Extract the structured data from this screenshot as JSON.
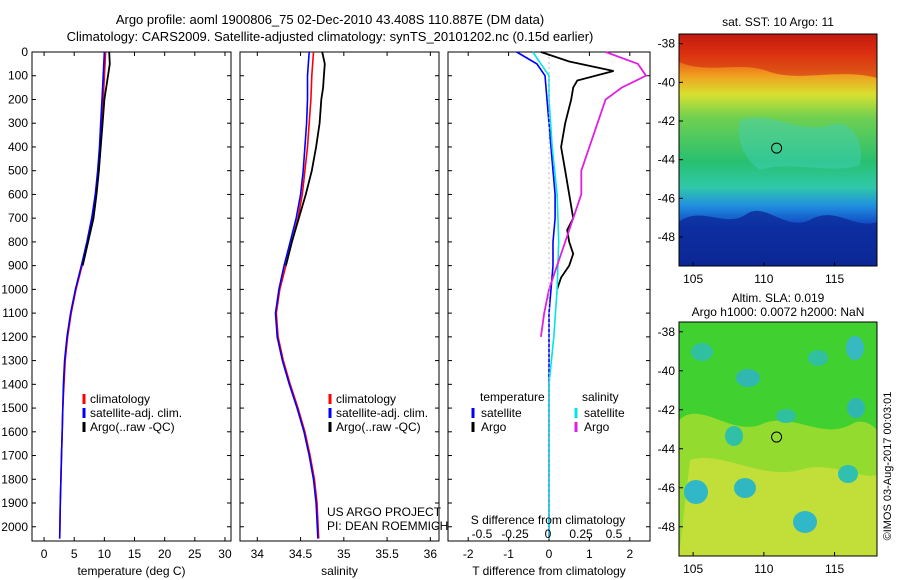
{
  "title": {
    "line1": "Argo profile: aoml 1900806_75 02-Dec-2010 43.408S 110.887E (DM data)",
    "line2": "Climatology: CARS2009. Satellite-adjusted climatology: synTS_20101202.nc (0.15d earlier)"
  },
  "depth_ticks": [
    "0",
    "100",
    "200",
    "300",
    "400",
    "500",
    "600",
    "700",
    "800",
    "900",
    "1000",
    "1100",
    "1200",
    "1300",
    "1400",
    "1500",
    "1600",
    "1700",
    "1800",
    "1900",
    "2000"
  ],
  "colors": {
    "climatology": "#ff0000",
    "satellite": "#0000ff",
    "argo": "#000000",
    "sal_satellite": "#00e5e5",
    "sal_argo": "#e020e0"
  },
  "chart_data": [
    {
      "type": "line",
      "id": "temperature",
      "xlabel": "temperature (deg C)",
      "xlim": [
        -2,
        31
      ],
      "xticks": [
        "0",
        "5",
        "10",
        "15",
        "20",
        "25",
        "30"
      ],
      "ylim": [
        2060,
        0
      ],
      "legend": [
        "climatology",
        "satellite-adj. clim.",
        "Argo(..raw -QC)"
      ],
      "series": [
        {
          "name": "climatology",
          "depth": [
            0,
            100,
            200,
            300,
            400,
            500,
            600,
            700,
            800,
            900,
            1000,
            1100,
            1200,
            1300,
            1400,
            1500,
            1600,
            1700,
            1800,
            1900,
            2050
          ],
          "values": [
            10.2,
            10.0,
            9.8,
            9.5,
            9.3,
            9.0,
            8.6,
            8.0,
            7.2,
            6.3,
            5.3,
            4.5,
            3.9,
            3.5,
            3.3,
            3.1,
            3.0,
            2.9,
            2.8,
            2.7,
            2.6
          ]
        },
        {
          "name": "satellite-adj. clim.",
          "depth": [
            0,
            100,
            200,
            300,
            400,
            500,
            600,
            700,
            800,
            900,
            1000,
            1100,
            1200,
            1300,
            1400,
            1500,
            1600,
            1700,
            1800,
            1900,
            2050
          ],
          "values": [
            10.0,
            9.8,
            9.6,
            9.4,
            9.2,
            8.9,
            8.5,
            7.9,
            7.1,
            6.2,
            5.2,
            4.4,
            3.8,
            3.4,
            3.2,
            3.1,
            3.0,
            2.9,
            2.8,
            2.7,
            2.6
          ]
        },
        {
          "name": "Argo(..raw -QC)",
          "depth": [
            0,
            50,
            100,
            150,
            200,
            300,
            400,
            500,
            600,
            700,
            800,
            900
          ],
          "values": [
            10.8,
            10.9,
            10.6,
            10.3,
            10.0,
            9.7,
            9.4,
            9.1,
            8.7,
            8.2,
            7.3,
            6.4
          ]
        }
      ]
    },
    {
      "type": "line",
      "id": "salinity",
      "xlabel": "salinity",
      "xlim": [
        33.8,
        36.1
      ],
      "xticks": [
        "34",
        "34.5",
        "35",
        "35.5",
        "36"
      ],
      "ylim": [
        2060,
        0
      ],
      "legend": [
        "climatology",
        "satellite-adj. clim.",
        "Argo(..raw -QC)"
      ],
      "annotation": [
        "US ARGO PROJECT",
        "PI: DEAN ROEMMICH"
      ],
      "series": [
        {
          "name": "climatology",
          "depth": [
            0,
            100,
            200,
            300,
            400,
            500,
            600,
            700,
            800,
            900,
            1000,
            1100,
            1200,
            1300,
            1400,
            1500,
            1600,
            1700,
            1800,
            1900,
            2050
          ],
          "values": [
            34.65,
            34.63,
            34.62,
            34.6,
            34.58,
            34.55,
            34.52,
            34.47,
            34.4,
            34.33,
            34.26,
            34.22,
            34.24,
            34.3,
            34.38,
            34.47,
            34.55,
            34.61,
            34.66,
            34.69,
            34.71
          ]
        },
        {
          "name": "satellite-adj. clim.",
          "depth": [
            0,
            100,
            200,
            300,
            400,
            500,
            600,
            700,
            800,
            900,
            1000,
            1100,
            1200,
            1300,
            1400,
            1500,
            1600,
            1700,
            1800,
            1900,
            2050
          ],
          "values": [
            34.6,
            34.58,
            34.58,
            34.57,
            34.55,
            34.53,
            34.5,
            34.45,
            34.38,
            34.31,
            34.25,
            34.21,
            34.23,
            34.29,
            34.37,
            34.46,
            34.54,
            34.6,
            34.65,
            34.68,
            34.7
          ]
        },
        {
          "name": "Argo(..raw -QC)",
          "depth": [
            0,
            50,
            100,
            150,
            200,
            300,
            400,
            500,
            600,
            700,
            800,
            900
          ],
          "values": [
            34.75,
            34.78,
            34.77,
            34.76,
            34.74,
            34.72,
            34.68,
            34.63,
            34.56,
            34.48,
            34.4,
            34.33
          ]
        }
      ]
    },
    {
      "type": "line",
      "id": "difference",
      "xlabel": "T difference from climatology",
      "top_label": "S difference from climatology",
      "xlim": [
        -2.5,
        2.5
      ],
      "xticks": [
        "-2",
        "-1",
        "0",
        "1",
        "2"
      ],
      "top_xticks": [
        "-0.5",
        "-0.25",
        "0",
        "0.25",
        "0.5"
      ],
      "ylim": [
        2060,
        0
      ],
      "legend_titles": [
        "temperature",
        "salinity"
      ],
      "legend": [
        "satellite",
        "Argo",
        "satellite",
        "Argo"
      ],
      "series": [
        {
          "name": "temperature satellite",
          "depth": [
            0,
            50,
            100,
            200,
            300,
            400,
            500,
            600,
            700,
            800,
            900,
            1000,
            1100,
            1200,
            1300,
            1400,
            1500,
            1600,
            1800,
            2050
          ],
          "values": [
            -0.8,
            -0.3,
            -0.1,
            -0.05,
            0.0,
            0.05,
            0.1,
            0.15,
            0.15,
            0.1,
            0.1,
            0.05,
            0.0,
            0.0,
            0.0,
            0.0,
            0.0,
            0.0,
            0.0,
            0.0
          ]
        },
        {
          "name": "temperature Argo",
          "depth": [
            0,
            40,
            80,
            120,
            150,
            200,
            300,
            400,
            500,
            600,
            700,
            750,
            800,
            850,
            900,
            950,
            1000
          ],
          "values": [
            -0.2,
            0.5,
            1.6,
            0.7,
            0.6,
            0.55,
            0.4,
            0.3,
            0.4,
            0.5,
            0.6,
            0.45,
            0.5,
            0.6,
            0.5,
            0.3,
            0.2
          ]
        },
        {
          "name": "salinity satellite",
          "depth": [
            0,
            50,
            100,
            200,
            400,
            600,
            800,
            1000,
            1200,
            1400,
            1600,
            1800,
            2050
          ],
          "values": [
            -0.1,
            -0.05,
            0.0,
            0.0,
            0.02,
            0.05,
            0.06,
            0.05,
            0.03,
            0.0,
            0.0,
            0.0,
            0.0
          ]
        },
        {
          "name": "salinity Argo",
          "depth": [
            0,
            50,
            100,
            150,
            200,
            300,
            400,
            500,
            600,
            700,
            800,
            900,
            1000,
            1100,
            1200
          ],
          "values": [
            0.35,
            0.55,
            0.6,
            0.45,
            0.35,
            0.3,
            0.25,
            0.2,
            0.2,
            0.15,
            0.1,
            0.05,
            0.0,
            -0.03,
            -0.05
          ]
        }
      ]
    },
    {
      "type": "heatmap",
      "id": "sst",
      "title": "sat. SST: 10 Argo: 11",
      "xticks": [
        "105",
        "110",
        "115"
      ],
      "yticks": [
        "-38",
        "-40",
        "-42",
        "-44",
        "-46",
        "-48"
      ],
      "xlim": [
        104,
        118
      ],
      "ylim": [
        -37.5,
        -49.5
      ],
      "marker": [
        110.9,
        -43.4
      ]
    },
    {
      "type": "heatmap",
      "id": "sla",
      "title_lines": [
        "Altim. SLA: 0.019",
        "Argo h1000: 0.0072 h2000: NaN"
      ],
      "xticks": [
        "105",
        "110",
        "115"
      ],
      "yticks": [
        "-38",
        "-40",
        "-42",
        "-44",
        "-46",
        "-48"
      ],
      "xlim": [
        104,
        118
      ],
      "ylim": [
        -37.5,
        -49.5
      ],
      "marker": [
        110.9,
        -43.4
      ]
    }
  ],
  "credit": "©IMOS 03-Aug-2017 00:03:01"
}
